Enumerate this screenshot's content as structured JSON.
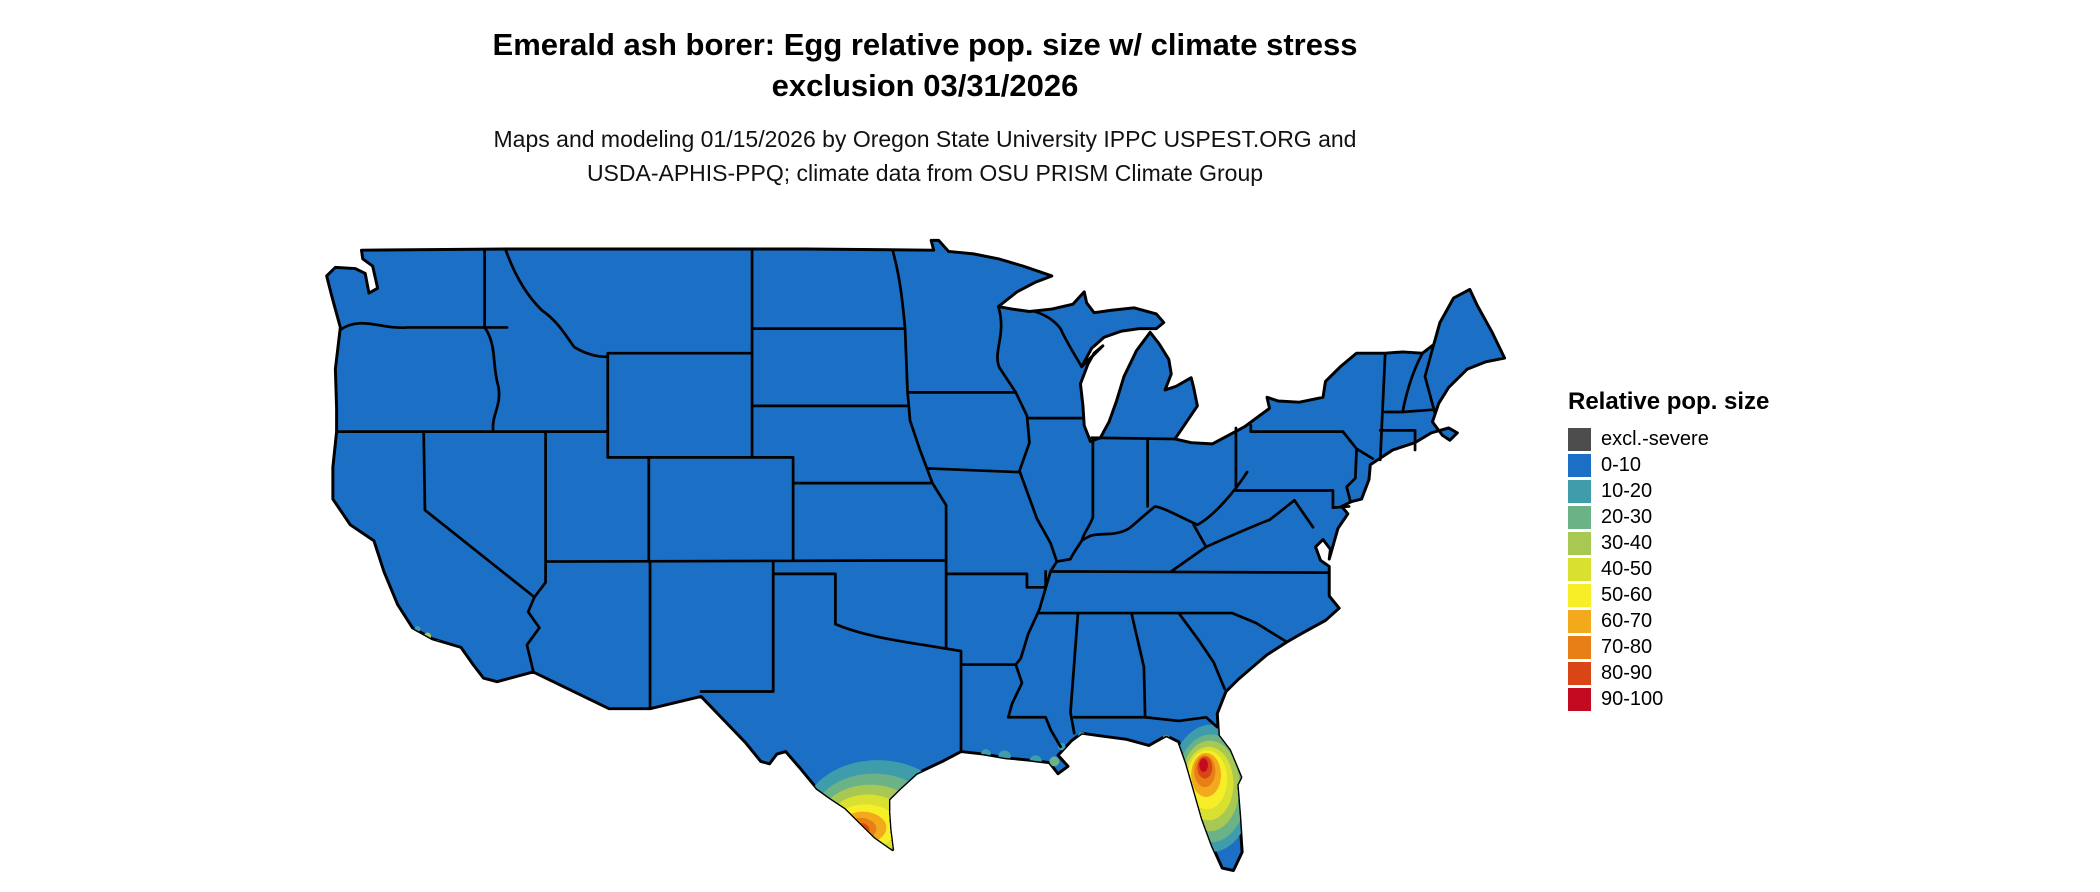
{
  "title": {
    "line1": "Emerald ash borer: Egg relative pop. size w/ climate stress",
    "line2": "exclusion 03/31/2026"
  },
  "subtitle": {
    "line1": "Maps and modeling 01/15/2026 by Oregon State University IPPC USPEST.ORG and",
    "line2": "USDA-APHIS-PPQ; climate data from OSU PRISM Climate Group"
  },
  "legend": {
    "title": "Relative pop. size",
    "items": [
      {
        "label": "excl.-severe",
        "color": "#4d4d4d"
      },
      {
        "label": "0-10",
        "color": "#1b6fc4"
      },
      {
        "label": "10-20",
        "color": "#3f9dab"
      },
      {
        "label": "20-30",
        "color": "#6bb286"
      },
      {
        "label": "30-40",
        "color": "#a7c853"
      },
      {
        "label": "40-50",
        "color": "#d9e030"
      },
      {
        "label": "50-60",
        "color": "#f8ee27"
      },
      {
        "label": "60-70",
        "color": "#f2a91c"
      },
      {
        "label": "70-80",
        "color": "#e87f16"
      },
      {
        "label": "80-90",
        "color": "#d94514"
      },
      {
        "label": "90-100",
        "color": "#c40a20"
      }
    ]
  },
  "map": {
    "base_color": "#1b6fc4",
    "border_color": "#000000",
    "background": "#ffffff",
    "region": "Continental United States",
    "hotspots": [
      "south Texas (Rio Grande Valley)",
      "central Florida peninsula",
      "Gulf coast fringe",
      "southern California coast"
    ]
  }
}
